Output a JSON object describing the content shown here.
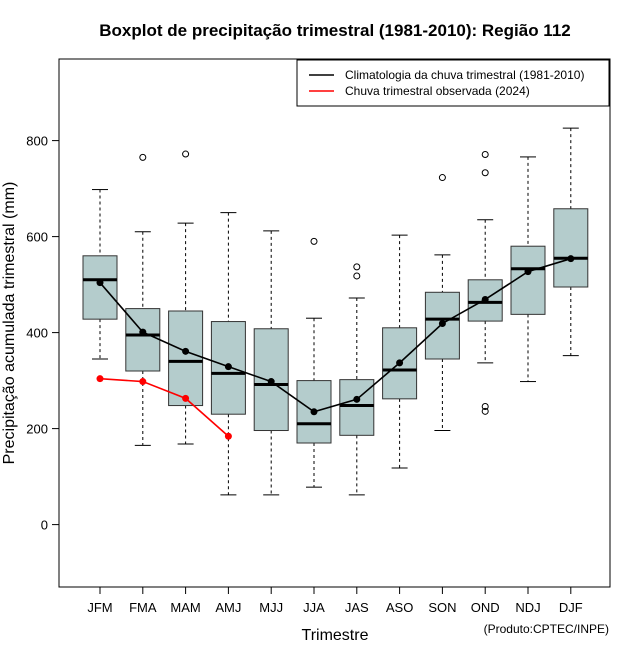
{
  "chart_data": {
    "type": "boxplot",
    "title": "Boxplot de precipitação trimestral (1981-2010): Região 112",
    "xlabel": "Trimestre",
    "ylabel": "Precipitação acumulada trimestral (mm)",
    "ylim": [
      -130,
      970
    ],
    "yticks": [
      0,
      200,
      400,
      600,
      800
    ],
    "categories": [
      "JFM",
      "FMA",
      "MAM",
      "AMJ",
      "MJJ",
      "JJA",
      "JAS",
      "ASO",
      "SON",
      "OND",
      "NDJ",
      "DJF"
    ],
    "boxes": [
      {
        "category": "JFM",
        "whisker_low": 345,
        "q1": 428,
        "median": 510,
        "q3": 560,
        "whisker_high": 698,
        "outliers": []
      },
      {
        "category": "FMA",
        "whisker_low": 165,
        "q1": 320,
        "median": 395,
        "q3": 450,
        "whisker_high": 610,
        "outliers": [
          765
        ]
      },
      {
        "category": "MAM",
        "whisker_low": 168,
        "q1": 248,
        "median": 340,
        "q3": 445,
        "whisker_high": 628,
        "outliers": [
          772
        ]
      },
      {
        "category": "AMJ",
        "whisker_low": 62,
        "q1": 230,
        "median": 315,
        "q3": 423,
        "whisker_high": 650,
        "outliers": []
      },
      {
        "category": "MJJ",
        "whisker_low": 62,
        "q1": 196,
        "median": 292,
        "q3": 408,
        "whisker_high": 612,
        "outliers": []
      },
      {
        "category": "JJA",
        "whisker_low": 78,
        "q1": 170,
        "median": 210,
        "q3": 300,
        "whisker_high": 430,
        "outliers": [
          590
        ]
      },
      {
        "category": "JAS",
        "whisker_low": 62,
        "q1": 186,
        "median": 248,
        "q3": 302,
        "whisker_high": 472,
        "outliers": [
          518,
          537
        ]
      },
      {
        "category": "ASO",
        "whisker_low": 118,
        "q1": 262,
        "median": 322,
        "q3": 410,
        "whisker_high": 603,
        "outliers": []
      },
      {
        "category": "SON",
        "whisker_low": 196,
        "q1": 345,
        "median": 428,
        "q3": 484,
        "whisker_high": 562,
        "outliers": [
          723
        ]
      },
      {
        "category": "OND",
        "whisker_low": 337,
        "q1": 424,
        "median": 463,
        "q3": 510,
        "whisker_high": 635,
        "outliers": [
          236,
          246,
          733,
          771
        ]
      },
      {
        "category": "NDJ",
        "whisker_low": 298,
        "q1": 438,
        "median": 533,
        "q3": 580,
        "whisker_high": 766,
        "outliers": []
      },
      {
        "category": "DJF",
        "whisker_low": 352,
        "q1": 495,
        "median": 555,
        "q3": 658,
        "whisker_high": 826,
        "outliers": []
      }
    ],
    "series": [
      {
        "name": "Climatologia da chuva trimestral (1981-2010)",
        "color": "#000000",
        "values": [
          504,
          401,
          361,
          329,
          298,
          235,
          261,
          337,
          419,
          469,
          527,
          554
        ]
      },
      {
        "name": "Chuva trimestral observada (2024)",
        "color": "#ff0000",
        "values": [
          304,
          298,
          263,
          184,
          null,
          null,
          null,
          null,
          null,
          null,
          null,
          null
        ]
      }
    ],
    "legend_position": "top-right",
    "box_fill": "#b4cccc",
    "credit": "(Produto:CPTEC/INPE)"
  }
}
